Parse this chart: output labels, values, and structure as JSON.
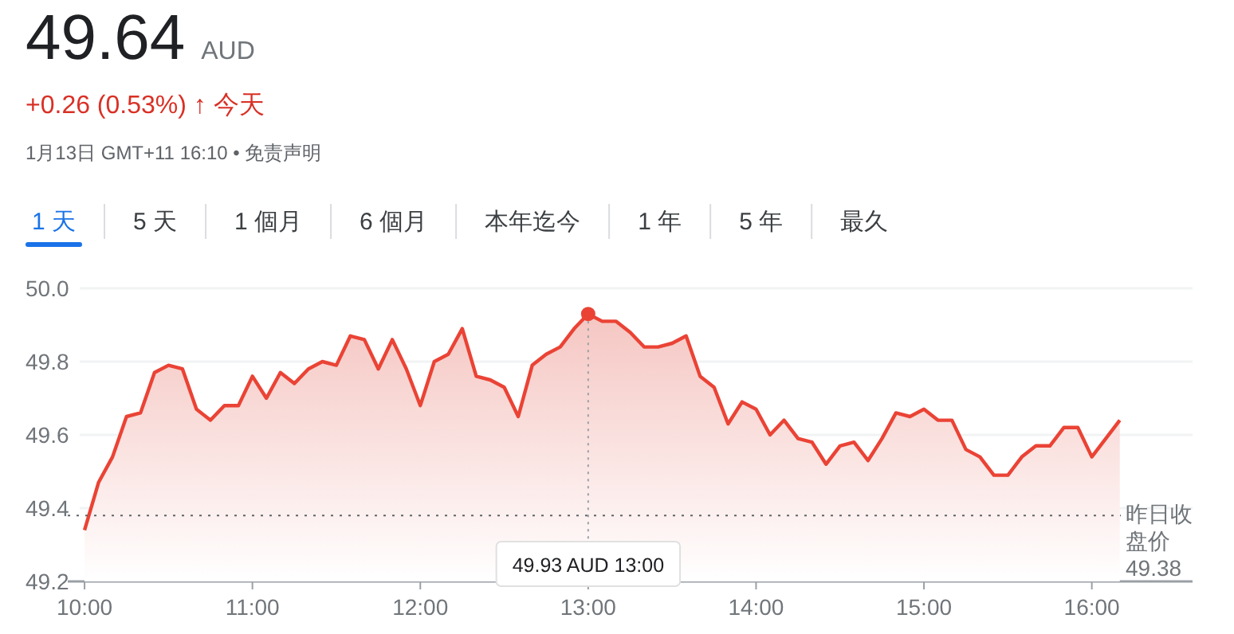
{
  "chart_data": {
    "type": "area",
    "title": "49.64",
    "subtitle": "AUD",
    "annotations": [
      "+0.26 (0.53%) ↑ 今天",
      "1月13日 GMT+11 16:10 • 免责声明",
      "1 天",
      "5 天",
      "1 個月",
      "6 個月",
      "本年迄今",
      "1 年",
      "5 年",
      "最久",
      "49.38",
      {
        "text": "49.93 AUD  13:00",
        "x": 13,
        "y": 49.93
      }
    ],
    "x": [
      10,
      10.0833,
      10.1667,
      10.25,
      10.3333,
      10.4167,
      10.5,
      10.5833,
      10.6667,
      10.75,
      10.8333,
      10.9167,
      11,
      11.0833,
      11.1667,
      11.25,
      11.3333,
      11.4167,
      11.5,
      11.5833,
      11.6667,
      11.75,
      11.8333,
      11.9167,
      12,
      12.0833,
      12.1667,
      12.25,
      12.3333,
      12.4167,
      12.5,
      12.5833,
      12.6667,
      12.75,
      12.8333,
      12.9167,
      13,
      13.0833,
      13.1667,
      13.25,
      13.3333,
      13.4167,
      13.5,
      13.5833,
      13.6667,
      13.75,
      13.8333,
      13.9167,
      14,
      14.0833,
      14.1667,
      14.25,
      14.3333,
      14.4167,
      14.5,
      14.5833,
      14.6667,
      14.75,
      14.8333,
      14.9167,
      15,
      15.0833,
      15.1667,
      15.25,
      15.3333,
      15.4167,
      15.5,
      15.5833,
      15.6667,
      15.75,
      15.8333,
      15.9167,
      16,
      16.0833,
      16.1667
    ],
    "series": [
      {
        "color": "#ea4335",
        "values": [
          49.34,
          49.47,
          49.54,
          49.65,
          49.66,
          49.77,
          49.79,
          49.78,
          49.67,
          49.64,
          49.68,
          49.68,
          49.76,
          49.7,
          49.77,
          49.74,
          49.78,
          49.8,
          49.79,
          49.87,
          49.86,
          49.78,
          49.86,
          49.78,
          49.68,
          49.8,
          49.82,
          49.89,
          49.76,
          49.75,
          49.73,
          49.65,
          49.79,
          49.82,
          49.84,
          49.89,
          49.93,
          49.91,
          49.91,
          49.88,
          49.84,
          49.84,
          49.85,
          49.87,
          49.76,
          49.73,
          49.63,
          49.69,
          49.67,
          49.6,
          49.64,
          49.59,
          49.58,
          49.52,
          49.57,
          49.58,
          49.53,
          49.59,
          49.66,
          49.65,
          49.67,
          49.64,
          49.64,
          49.56,
          49.54,
          49.49,
          49.49,
          49.54,
          49.57,
          49.57,
          49.62,
          49.62,
          49.54,
          49.59,
          49.64
        ]
      }
    ],
    "xlim": [
      9.9,
      16.6
    ],
    "xticks": [
      {
        "value": 10,
        "label": "10:00"
      },
      {
        "value": 11,
        "label": "11:00"
      },
      {
        "value": 12,
        "label": "12:00"
      },
      {
        "value": 13,
        "label": "13:00"
      },
      {
        "value": 14,
        "label": "14:00"
      },
      {
        "value": 15,
        "label": "15:00"
      },
      {
        "value": 16,
        "label": "16:00"
      }
    ],
    "ylim": [
      49.2,
      50.0
    ],
    "yticks": [
      {
        "value": 49.2,
        "label": "49.2"
      },
      {
        "value": 49.4,
        "label": "49.4"
      },
      {
        "value": 49.6,
        "label": "49.6"
      },
      {
        "value": 49.8,
        "label": "49.8"
      },
      {
        "value": 50.0,
        "label": "50.0"
      }
    ],
    "ref_lines": [
      {
        "axis": "y",
        "value": 49.38,
        "label": "昨日收盘价",
        "line_style": "dotted"
      }
    ],
    "grid": "y",
    "marker": "none",
    "line_style": "solid"
  }
}
